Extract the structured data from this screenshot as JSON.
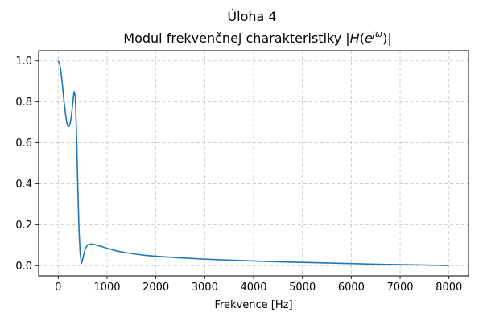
{
  "chart_data": {
    "type": "line",
    "title": "Úloha 4",
    "subtitle_prefix": "Modul frekvenčnej charakteristiky |",
    "subtitle_h": "H",
    "subtitle_e": "e",
    "subtitle_sup": "jω",
    "subtitle_suffix": ")|",
    "xlabel": "Frekvence [Hz]",
    "ylabel": "",
    "xlim": [
      -400,
      8400
    ],
    "ylim": [
      -0.05,
      1.05
    ],
    "xticks": [
      0,
      1000,
      2000,
      3000,
      4000,
      5000,
      6000,
      7000,
      8000
    ],
    "yticks": [
      0.0,
      0.2,
      0.4,
      0.6,
      0.8,
      1.0
    ],
    "xtick_labels": [
      "0",
      "1000",
      "2000",
      "3000",
      "4000",
      "5000",
      "6000",
      "7000",
      "8000"
    ],
    "ytick_labels": [
      "0.0",
      "0.2",
      "0.4",
      "0.6",
      "0.8",
      "1.0"
    ],
    "grid": true,
    "color": "#1f77b4",
    "series": [
      {
        "x": [
          0,
          25,
          50,
          75,
          100,
          125,
          150,
          175,
          200,
          225,
          250,
          275,
          300,
          325,
          350,
          375,
          400,
          425,
          450,
          475,
          500,
          550,
          600,
          650,
          700,
          800,
          900,
          1000,
          1200,
          1400,
          1600,
          1800,
          2000,
          2500,
          3000,
          3500,
          4000,
          4500,
          5000,
          5500,
          6000,
          6500,
          7000,
          7500,
          8000
        ],
        "y": [
          1.0,
          0.99,
          0.96,
          0.91,
          0.85,
          0.79,
          0.74,
          0.7,
          0.68,
          0.68,
          0.7,
          0.74,
          0.8,
          0.85,
          0.83,
          0.65,
          0.4,
          0.18,
          0.06,
          0.01,
          0.03,
          0.08,
          0.1,
          0.105,
          0.105,
          0.1,
          0.093,
          0.085,
          0.072,
          0.063,
          0.056,
          0.05,
          0.046,
          0.038,
          0.032,
          0.027,
          0.023,
          0.019,
          0.016,
          0.013,
          0.01,
          0.007,
          0.005,
          0.003,
          0.001
        ]
      }
    ]
  }
}
